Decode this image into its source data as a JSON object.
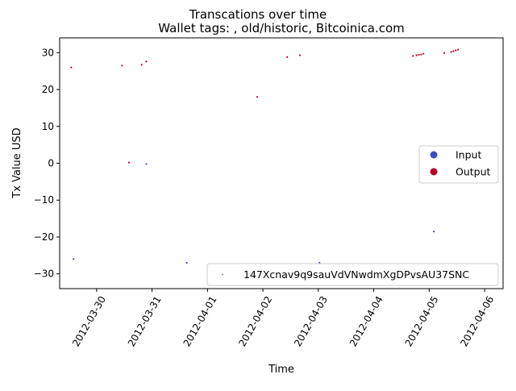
{
  "chart_data": {
    "type": "scatter",
    "suptitle": "Transcations over time",
    "title": "Wallet tags: , old/historic, Bitcoinica.com",
    "xlabel": "Time",
    "ylabel": "Tx Value USD",
    "xlim": [
      "2012-03-29T08:00",
      "2012-04-06T08:00"
    ],
    "ylim": [
      -34,
      34
    ],
    "xticks": [
      "2012-03-30",
      "2012-03-31",
      "2012-04-01",
      "2012-04-02",
      "2012-04-03",
      "2012-04-04",
      "2012-04-05",
      "2012-04-06"
    ],
    "yticks": [
      -30,
      -20,
      -10,
      0,
      10,
      20,
      30
    ],
    "grid": false,
    "colors": {
      "input": "#3b4cc0",
      "output": "#b40426",
      "wallet": "#2a7f8f"
    },
    "color_legend": {
      "placement": "center-right",
      "entries": [
        {
          "label": "Input",
          "color": "#3b4cc0"
        },
        {
          "label": "Output",
          "color": "#b40426"
        }
      ]
    },
    "wallet_legend": {
      "placement": "lower-right",
      "label": "147Xcnav9q9sauVdVNwdmXgDPvsAU37SNC"
    },
    "series": [
      {
        "kind": "input",
        "points": [
          {
            "x": "2012-03-29T14:00",
            "y": -26
          },
          {
            "x": "2012-03-30T21:30",
            "y": -0.2
          },
          {
            "x": "2012-03-31T15:00",
            "y": -27
          },
          {
            "x": "2012-04-03T00:30",
            "y": -27
          },
          {
            "x": "2012-04-05T02:00",
            "y": -18.5
          }
        ]
      },
      {
        "kind": "output",
        "points": [
          {
            "x": "2012-03-29T13:00",
            "y": 26
          },
          {
            "x": "2012-03-30T11:00",
            "y": 26.5
          },
          {
            "x": "2012-03-30T14:00",
            "y": 0.2
          },
          {
            "x": "2012-03-30T19:30",
            "y": 26.7
          },
          {
            "x": "2012-03-30T21:30",
            "y": 27.6
          },
          {
            "x": "2012-04-01T21:30",
            "y": 18
          },
          {
            "x": "2012-04-02T10:30",
            "y": 28.8
          },
          {
            "x": "2012-04-02T16:00",
            "y": 29.3
          },
          {
            "x": "2012-04-04T17:00",
            "y": 29.1
          },
          {
            "x": "2012-04-04T18:30",
            "y": 29.3
          },
          {
            "x": "2012-04-04T19:30",
            "y": 29.4
          },
          {
            "x": "2012-04-04T20:30",
            "y": 29.5
          },
          {
            "x": "2012-04-04T21:30",
            "y": 29.7
          },
          {
            "x": "2012-04-05T06:30",
            "y": 29.9
          },
          {
            "x": "2012-04-05T09:30",
            "y": 30.2
          },
          {
            "x": "2012-04-05T10:30",
            "y": 30.4
          },
          {
            "x": "2012-04-05T11:30",
            "y": 30.6
          },
          {
            "x": "2012-04-05T12:30",
            "y": 30.8
          }
        ]
      }
    ]
  }
}
